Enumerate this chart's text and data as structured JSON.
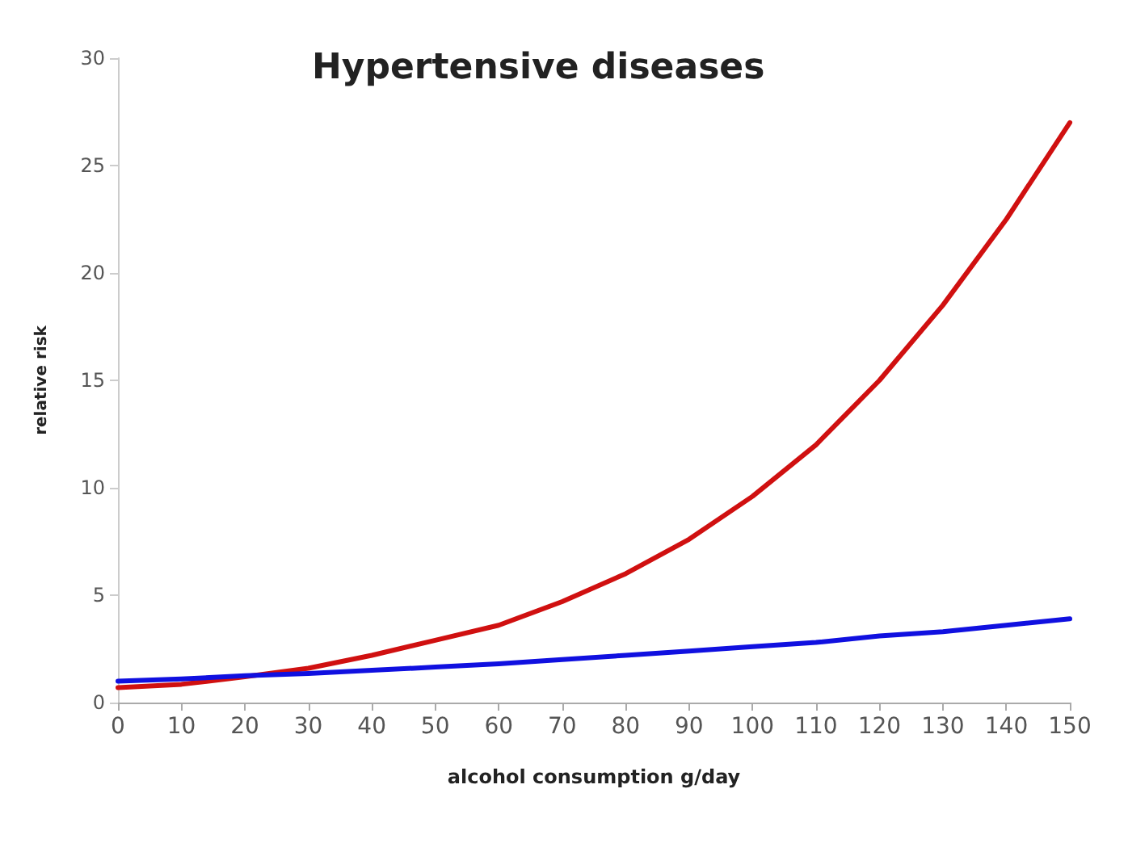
{
  "chart_data": {
    "type": "line",
    "title": "Hypertensive diseases",
    "xlabel": "alcohol consumption g/day",
    "ylabel": "relative risk",
    "x": [
      0,
      10,
      20,
      30,
      40,
      50,
      60,
      70,
      80,
      90,
      100,
      110,
      120,
      130,
      140,
      150
    ],
    "series": [
      {
        "color": "#d01010",
        "values": [
          0.7,
          0.85,
          1.2,
          1.6,
          2.2,
          2.9,
          3.6,
          4.7,
          6.0,
          7.6,
          9.6,
          12,
          15,
          18.5,
          22.5,
          27
        ]
      },
      {
        "color": "#1010e0",
        "values": [
          1.0,
          1.1,
          1.25,
          1.35,
          1.5,
          1.65,
          1.8,
          2.0,
          2.2,
          2.4,
          2.6,
          2.8,
          3.1,
          3.3,
          3.6,
          3.9
        ]
      }
    ],
    "xlim": [
      0,
      150
    ],
    "xticks": [
      0,
      10,
      20,
      30,
      40,
      50,
      60,
      70,
      80,
      90,
      100,
      110,
      120,
      130,
      140,
      150
    ],
    "ylim": [
      0,
      30
    ],
    "yticks": [
      0,
      5,
      10,
      15,
      20,
      25,
      30
    ],
    "grid": false,
    "marker": "none",
    "line_style": "solid"
  }
}
